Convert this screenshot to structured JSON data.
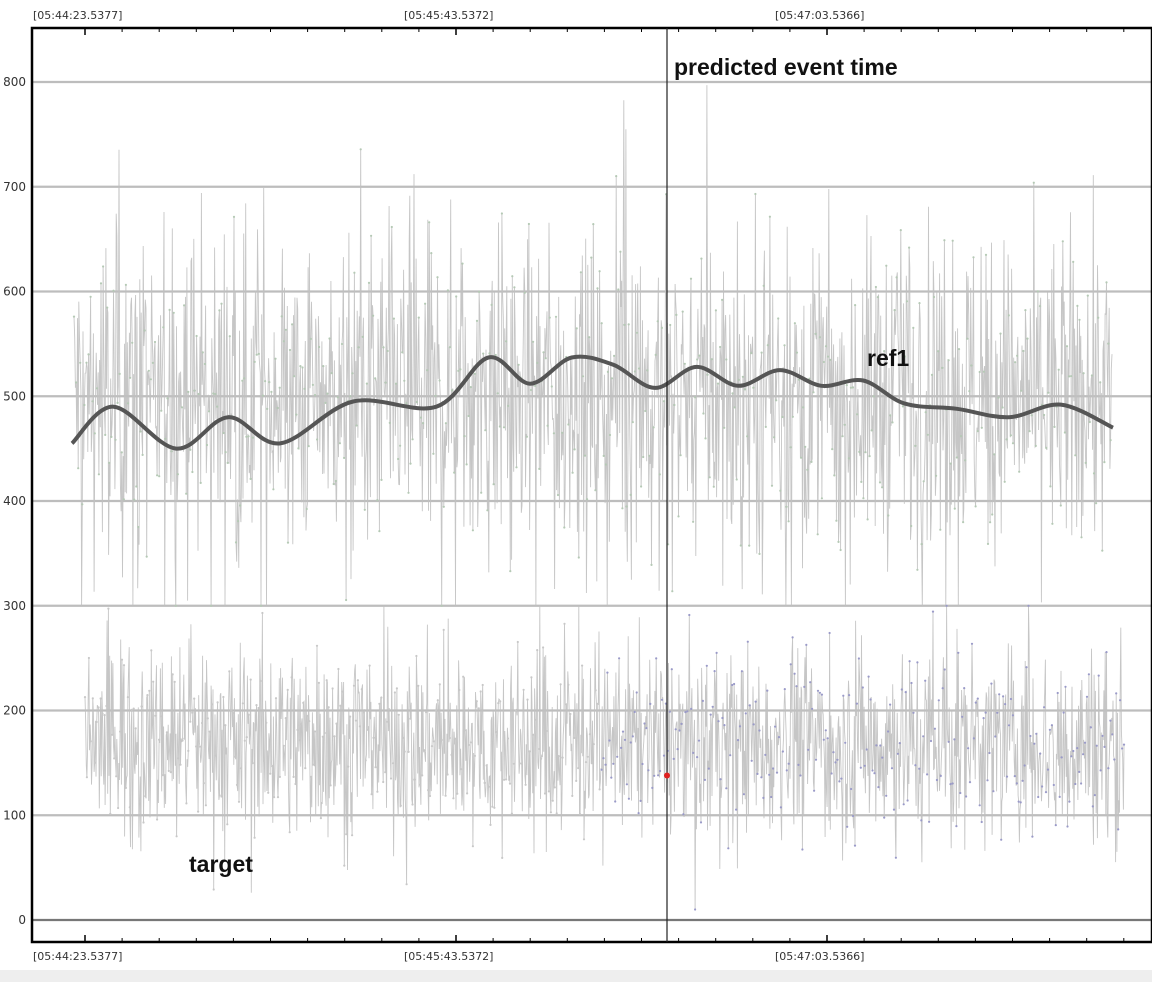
{
  "chart_data": {
    "type": "line",
    "x_ticks_top": [
      "[05:44:23.5377]",
      "[05:45:43.5372]",
      "[05:47:03.5366]"
    ],
    "x_ticks_bottom": [
      "[05:44:23.5377]",
      "[05:45:43.5372]",
      "[05:47:03.5366]"
    ],
    "y_ticks": [
      0,
      100,
      200,
      300,
      400,
      500,
      600,
      700,
      800
    ],
    "ylim": [
      -20,
      840
    ],
    "grid": true,
    "annotations": {
      "event_line": "predicted event time",
      "ref1": "ref1",
      "target": "target"
    },
    "series": [
      {
        "name": "ref1",
        "kind": "smoothed",
        "x": [
          0.0,
          0.04,
          0.1,
          0.15,
          0.2,
          0.27,
          0.35,
          0.4,
          0.44,
          0.48,
          0.52,
          0.56,
          0.6,
          0.64,
          0.68,
          0.72,
          0.76,
          0.8,
          0.85,
          0.9,
          0.95,
          1.0
        ],
        "values": [
          455,
          490,
          450,
          480,
          455,
          495,
          490,
          537,
          512,
          537,
          530,
          508,
          528,
          510,
          525,
          510,
          515,
          493,
          488,
          480,
          492,
          470
        ]
      },
      {
        "name": "ref1",
        "kind": "raw",
        "mean": 500,
        "range": [
          300,
          815
        ]
      },
      {
        "name": "target",
        "kind": "raw",
        "mean": 170,
        "range": [
          10,
          300
        ]
      }
    ],
    "event_marker": {
      "x_fraction": 0.57,
      "value": 138
    },
    "colors": {
      "raw": "#c0c0c0",
      "ref1_smoothed": "#555555",
      "grid": "#bdbdbd",
      "event_line": "#222222",
      "marker": "#e02020",
      "target_dots_after_event": "#9a9ac8"
    }
  }
}
